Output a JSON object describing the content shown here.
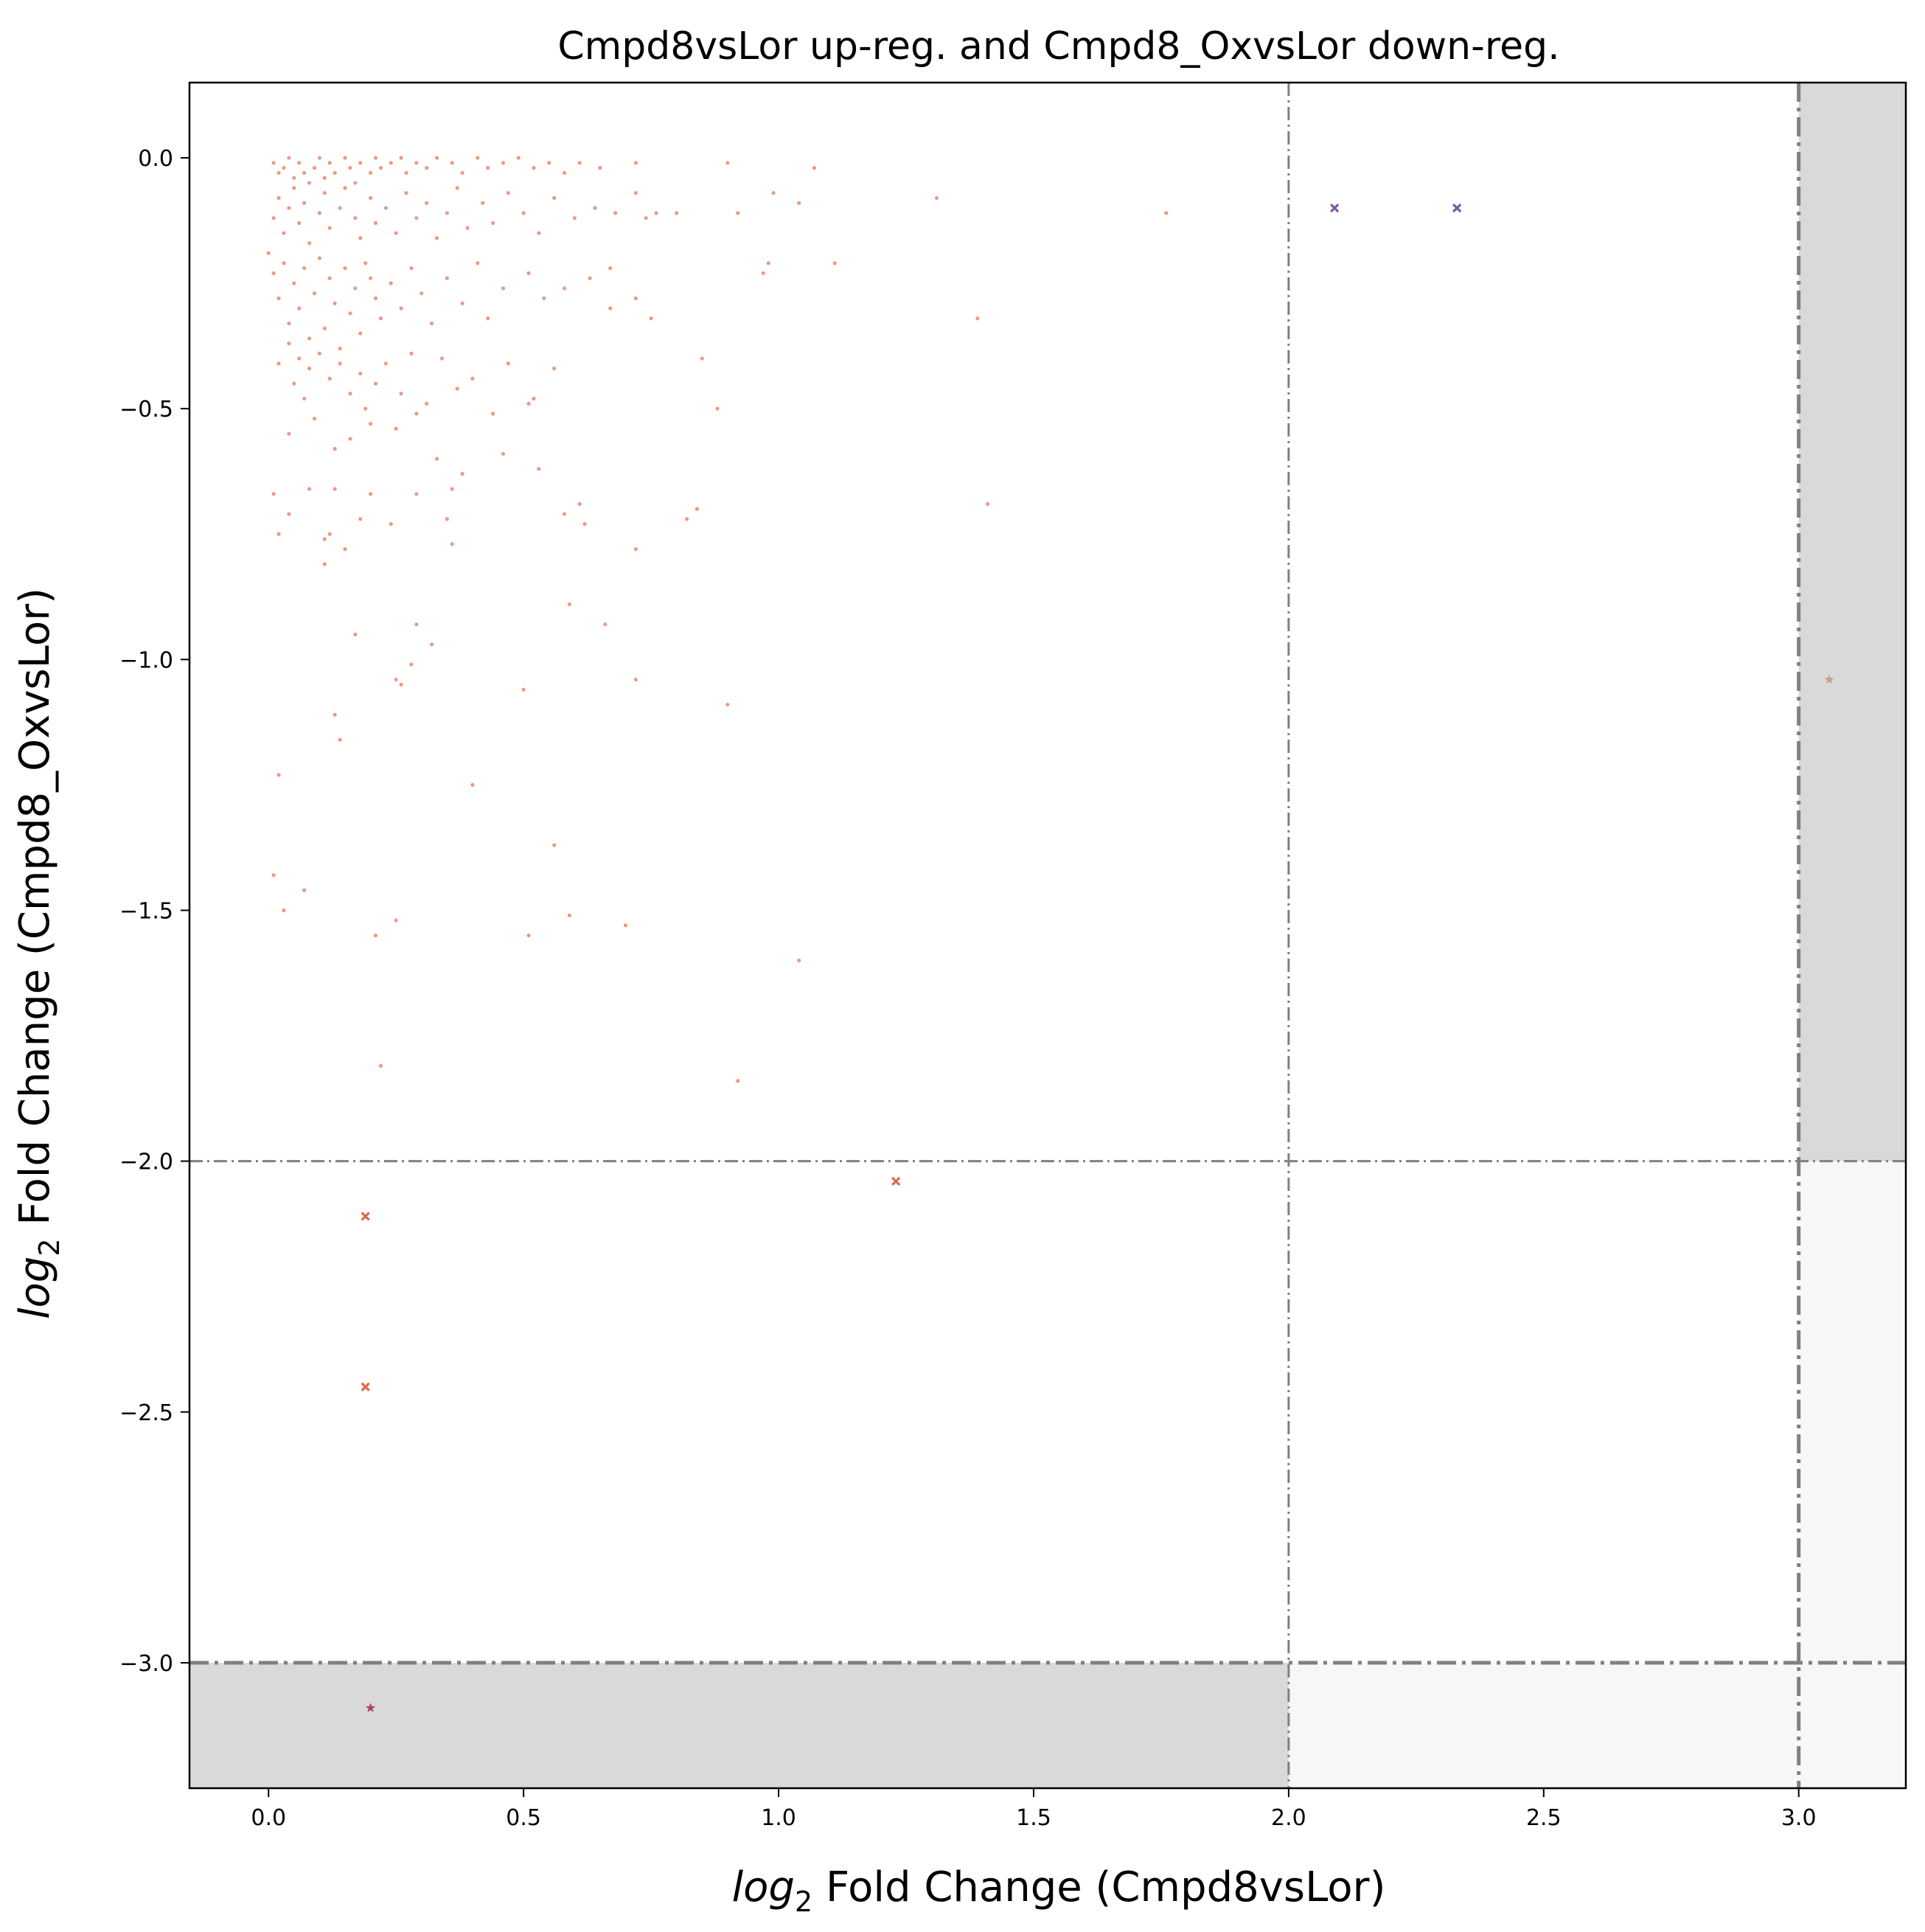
{
  "chart_data": {
    "type": "scatter",
    "title": "Cmpd8vsLor up-reg. and Cmpd8_OxvsLor down-reg.",
    "xlabel": {
      "math": "log",
      "sub": "2",
      "text": " Fold Change (Cmpd8vsLor)"
    },
    "ylabel": {
      "math": "log",
      "sub": "2",
      "text": " Fold Change (Cmpd8_OxvsLor)"
    },
    "xlim": [
      -0.155,
      3.21
    ],
    "ylim": [
      -3.25,
      0.15
    ],
    "xticks": [
      0.0,
      0.5,
      1.0,
      1.5,
      2.0,
      2.5,
      3.0
    ],
    "xtick_labels": [
      "0.0",
      "0.5",
      "1.0",
      "1.5",
      "2.0",
      "2.5",
      "3.0"
    ],
    "yticks": [
      0.0,
      -0.5,
      -1.0,
      -1.5,
      -2.0,
      -2.5,
      -3.0
    ],
    "ytick_labels": [
      "0.0",
      "−0.5",
      "−1.0",
      "−1.5",
      "−2.0",
      "−2.5",
      "−3.0"
    ],
    "thresholds": {
      "x": [
        2.0,
        3.0
      ],
      "y": [
        -2.0,
        -3.0
      ]
    },
    "shaded_regions": [
      {
        "x": [
          3.0,
          3.21
        ],
        "y": [
          -2.0,
          0.15
        ],
        "color": "#d9d9d9"
      },
      {
        "x": [
          -0.155,
          2.0
        ],
        "y": [
          -3.25,
          -3.0
        ],
        "color": "#d9d9d9"
      },
      {
        "x": [
          3.0,
          3.21
        ],
        "y": [
          -3.0,
          -2.0
        ],
        "color": "#f7f7f7"
      },
      {
        "x": [
          2.0,
          3.0
        ],
        "y": [
          -3.25,
          -3.0
        ],
        "color": "#f7f7f7"
      },
      {
        "x": [
          3.0,
          3.21
        ],
        "y": [
          -3.25,
          -3.0
        ],
        "color": "#f7f7f7"
      }
    ],
    "grid": false,
    "colors": {
      "dots": "#e07b5a",
      "x_orange": "#e06a45",
      "x_purple": "#7b57a5",
      "star_tan": "#c8a089",
      "star_red": "#b04a5e",
      "threshold_line": "#808080"
    },
    "series": [
      {
        "marker": "dot",
        "color": "#e07b5a",
        "points": [
          [
            0.01,
            -0.01
          ],
          [
            0.02,
            -0.03
          ],
          [
            0.03,
            -0.02
          ],
          [
            0.04,
            -0.0
          ],
          [
            0.05,
            -0.04
          ],
          [
            0.06,
            -0.01
          ],
          [
            0.07,
            -0.03
          ],
          [
            0.08,
            -0.05
          ],
          [
            0.09,
            -0.02
          ],
          [
            0.1,
            -0.0
          ],
          [
            0.11,
            -0.04
          ],
          [
            0.12,
            -0.01
          ],
          [
            0.13,
            -0.03
          ],
          [
            0.15,
            -0.0
          ],
          [
            0.16,
            -0.02
          ],
          [
            0.17,
            -0.05
          ],
          [
            0.18,
            -0.01
          ],
          [
            0.2,
            -0.03
          ],
          [
            0.21,
            -0.0
          ],
          [
            0.22,
            -0.02
          ],
          [
            0.24,
            -0.01
          ],
          [
            0.26,
            -0.0
          ],
          [
            0.27,
            -0.03
          ],
          [
            0.29,
            -0.01
          ],
          [
            0.31,
            -0.02
          ],
          [
            0.33,
            -0.0
          ],
          [
            0.36,
            -0.01
          ],
          [
            0.38,
            -0.03
          ],
          [
            0.41,
            -0.0
          ],
          [
            0.43,
            -0.02
          ],
          [
            0.46,
            -0.01
          ],
          [
            0.49,
            -0.0
          ],
          [
            0.52,
            -0.02
          ],
          [
            0.55,
            -0.01
          ],
          [
            0.58,
            -0.03
          ],
          [
            0.61,
            -0.01
          ],
          [
            0.65,
            -0.02
          ],
          [
            0.72,
            -0.01
          ],
          [
            0.9,
            -0.01
          ],
          [
            1.07,
            -0.02
          ],
          [
            0.0,
            -0.19
          ],
          [
            0.01,
            -0.12
          ],
          [
            0.02,
            -0.08
          ],
          [
            0.03,
            -0.15
          ],
          [
            0.04,
            -0.1
          ],
          [
            0.05,
            -0.06
          ],
          [
            0.06,
            -0.13
          ],
          [
            0.07,
            -0.09
          ],
          [
            0.08,
            -0.17
          ],
          [
            0.1,
            -0.11
          ],
          [
            0.11,
            -0.07
          ],
          [
            0.12,
            -0.14
          ],
          [
            0.14,
            -0.1
          ],
          [
            0.15,
            -0.06
          ],
          [
            0.17,
            -0.12
          ],
          [
            0.18,
            -0.16
          ],
          [
            0.2,
            -0.08
          ],
          [
            0.21,
            -0.13
          ],
          [
            0.23,
            -0.1
          ],
          [
            0.25,
            -0.15
          ],
          [
            0.27,
            -0.07
          ],
          [
            0.29,
            -0.12
          ],
          [
            0.31,
            -0.09
          ],
          [
            0.33,
            -0.16
          ],
          [
            0.35,
            -0.11
          ],
          [
            0.37,
            -0.06
          ],
          [
            0.39,
            -0.14
          ],
          [
            0.42,
            -0.09
          ],
          [
            0.44,
            -0.13
          ],
          [
            0.47,
            -0.07
          ],
          [
            0.5,
            -0.11
          ],
          [
            0.53,
            -0.15
          ],
          [
            0.56,
            -0.08
          ],
          [
            0.6,
            -0.12
          ],
          [
            0.64,
            -0.1
          ],
          [
            0.68,
            -0.11
          ],
          [
            0.72,
            -0.07
          ],
          [
            0.74,
            -0.12
          ],
          [
            0.76,
            -0.11
          ],
          [
            0.8,
            -0.11
          ],
          [
            0.92,
            -0.11
          ],
          [
            0.99,
            -0.07
          ],
          [
            1.04,
            -0.09
          ],
          [
            1.31,
            -0.08
          ],
          [
            1.76,
            -0.11
          ],
          [
            0.01,
            -0.23
          ],
          [
            0.02,
            -0.28
          ],
          [
            0.03,
            -0.21
          ],
          [
            0.04,
            -0.33
          ],
          [
            0.05,
            -0.25
          ],
          [
            0.06,
            -0.3
          ],
          [
            0.07,
            -0.22
          ],
          [
            0.08,
            -0.36
          ],
          [
            0.09,
            -0.27
          ],
          [
            0.1,
            -0.2
          ],
          [
            0.11,
            -0.34
          ],
          [
            0.12,
            -0.24
          ],
          [
            0.13,
            -0.29
          ],
          [
            0.14,
            -0.38
          ],
          [
            0.15,
            -0.22
          ],
          [
            0.16,
            -0.31
          ],
          [
            0.17,
            -0.26
          ],
          [
            0.18,
            -0.35
          ],
          [
            0.19,
            -0.21
          ],
          [
            0.2,
            -0.24
          ],
          [
            0.21,
            -0.28
          ],
          [
            0.22,
            -0.32
          ],
          [
            0.24,
            -0.25
          ],
          [
            0.26,
            -0.3
          ],
          [
            0.28,
            -0.22
          ],
          [
            0.3,
            -0.27
          ],
          [
            0.32,
            -0.33
          ],
          [
            0.35,
            -0.24
          ],
          [
            0.38,
            -0.29
          ],
          [
            0.41,
            -0.21
          ],
          [
            0.43,
            -0.32
          ],
          [
            0.46,
            -0.26
          ],
          [
            0.51,
            -0.23
          ],
          [
            0.54,
            -0.28
          ],
          [
            0.58,
            -0.26
          ],
          [
            0.63,
            -0.24
          ],
          [
            0.67,
            -0.22
          ],
          [
            0.67,
            -0.3
          ],
          [
            0.72,
            -0.28
          ],
          [
            0.75,
            -0.32
          ],
          [
            0.97,
            -0.23
          ],
          [
            0.98,
            -0.21
          ],
          [
            1.11,
            -0.21
          ],
          [
            1.39,
            -0.32
          ],
          [
            0.02,
            -0.41
          ],
          [
            0.04,
            -0.37
          ],
          [
            0.05,
            -0.45
          ],
          [
            0.06,
            -0.4
          ],
          [
            0.07,
            -0.48
          ],
          [
            0.08,
            -0.42
          ],
          [
            0.1,
            -0.39
          ],
          [
            0.12,
            -0.44
          ],
          [
            0.14,
            -0.41
          ],
          [
            0.16,
            -0.47
          ],
          [
            0.18,
            -0.43
          ],
          [
            0.19,
            -0.5
          ],
          [
            0.21,
            -0.45
          ],
          [
            0.23,
            -0.41
          ],
          [
            0.26,
            -0.47
          ],
          [
            0.28,
            -0.39
          ],
          [
            0.31,
            -0.49
          ],
          [
            0.34,
            -0.4
          ],
          [
            0.37,
            -0.46
          ],
          [
            0.4,
            -0.44
          ],
          [
            0.44,
            -0.51
          ],
          [
            0.47,
            -0.41
          ],
          [
            0.51,
            -0.49
          ],
          [
            0.52,
            -0.48
          ],
          [
            0.56,
            -0.42
          ],
          [
            0.85,
            -0.4
          ],
          [
            0.88,
            -0.5
          ],
          [
            0.04,
            -0.55
          ],
          [
            0.09,
            -0.52
          ],
          [
            0.13,
            -0.58
          ],
          [
            0.16,
            -0.56
          ],
          [
            0.2,
            -0.53
          ],
          [
            0.25,
            -0.54
          ],
          [
            0.29,
            -0.51
          ],
          [
            0.33,
            -0.6
          ],
          [
            0.46,
            -0.59
          ],
          [
            0.53,
            -0.62
          ],
          [
            0.01,
            -0.67
          ],
          [
            0.02,
            -0.75
          ],
          [
            0.04,
            -0.71
          ],
          [
            0.08,
            -0.66
          ],
          [
            0.11,
            -0.76
          ],
          [
            0.12,
            -0.75
          ],
          [
            0.13,
            -0.66
          ],
          [
            0.15,
            -0.78
          ],
          [
            0.18,
            -0.72
          ],
          [
            0.2,
            -0.67
          ],
          [
            0.24,
            -0.73
          ],
          [
            0.29,
            -0.67
          ],
          [
            0.35,
            -0.72
          ],
          [
            0.36,
            -0.66
          ],
          [
            0.38,
            -0.63
          ],
          [
            0.58,
            -0.71
          ],
          [
            0.61,
            -0.69
          ],
          [
            0.62,
            -0.73
          ],
          [
            0.72,
            -0.78
          ],
          [
            0.82,
            -0.72
          ],
          [
            0.84,
            -0.7
          ],
          [
            1.41,
            -0.69
          ],
          [
            0.11,
            -0.81
          ],
          [
            0.36,
            -0.77
          ],
          [
            0.17,
            -0.95
          ],
          [
            0.29,
            -0.93
          ],
          [
            0.32,
            -0.97
          ],
          [
            0.25,
            -1.04
          ],
          [
            0.26,
            -1.05
          ],
          [
            0.28,
            -1.01
          ],
          [
            0.59,
            -0.89
          ],
          [
            0.66,
            -0.93
          ],
          [
            0.72,
            -1.04
          ],
          [
            0.5,
            -1.06
          ],
          [
            0.9,
            -1.09
          ],
          [
            0.13,
            -1.11
          ],
          [
            0.14,
            -1.16
          ],
          [
            0.02,
            -1.23
          ],
          [
            0.4,
            -1.25
          ],
          [
            0.56,
            -1.37
          ],
          [
            0.01,
            -1.43
          ],
          [
            0.07,
            -1.46
          ],
          [
            0.03,
            -1.5
          ],
          [
            0.21,
            -1.55
          ],
          [
            0.25,
            -1.52
          ],
          [
            0.51,
            -1.55
          ],
          [
            0.59,
            -1.51
          ],
          [
            0.7,
            -1.53
          ],
          [
            1.04,
            -1.6
          ],
          [
            0.22,
            -1.81
          ],
          [
            0.92,
            -1.84
          ]
        ]
      },
      {
        "marker": "x",
        "color": "#e06a45",
        "points": [
          [
            0.19,
            -2.11
          ],
          [
            0.19,
            -2.45
          ],
          [
            1.23,
            -2.04
          ]
        ]
      },
      {
        "marker": "x",
        "color": "#7b57a5",
        "points": [
          [
            2.09,
            -0.1
          ],
          [
            2.33,
            -0.1
          ]
        ]
      },
      {
        "marker": "star",
        "color": "#c8a089",
        "points": [
          [
            3.06,
            -1.04
          ]
        ]
      },
      {
        "marker": "star",
        "color": "#b04a5e",
        "points": [
          [
            0.2,
            -3.09
          ]
        ]
      }
    ]
  }
}
